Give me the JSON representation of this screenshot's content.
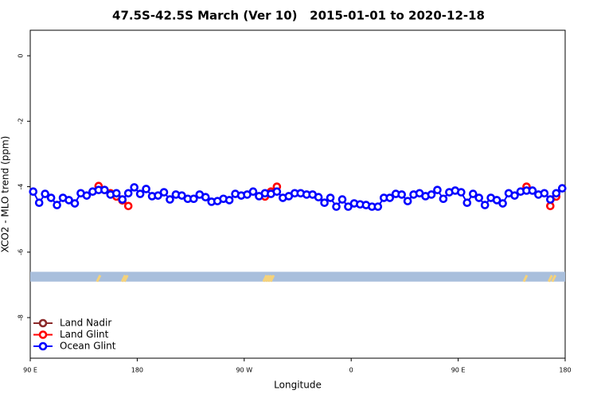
{
  "chart_data": {
    "type": "line",
    "title": "47.5S-42.5S March (Ver 10)   2015-01-01 to 2020-12-18",
    "x_label": "Longitude",
    "y_label": "XCO2 - MLO trend (ppm)",
    "xlim": [
      90,
      540
    ],
    "ylim": [
      -9.24,
      0.78
    ],
    "xticks": [
      {
        "value": 90,
        "label": "90 E"
      },
      180,
      {
        "value": 270,
        "label": "90 W"
      },
      {
        "value": 360,
        "label": "0"
      },
      {
        "value": 450,
        "label": "90 E"
      },
      {
        "value": 540,
        "label": "180"
      }
    ],
    "yticks": [
      0,
      -2,
      -4,
      -6,
      -8
    ],
    "legend": "bottom-left",
    "band": {
      "ylim": [
        -6.9,
        -6.6
      ],
      "color": "#a9bfdc",
      "mark_color": "#f5d27a",
      "mark_x": [
        147.5,
        168.5,
        170.5,
        287.5,
        289.5,
        291.5,
        293.5,
        506.5,
        527.5,
        530.5
      ]
    },
    "series": [
      {
        "name": "Land Nadir",
        "color": "#8b2a2a",
        "x": [],
        "values": []
      },
      {
        "name": "Land Glint",
        "color": "#ff0000",
        "x": [
          147.5,
          152.5,
          157.5,
          162.5,
          167.5,
          172.5,
          null,
          287.5,
          292.5,
          297.5,
          null,
          507.5,
          null,
          527.5,
          532.5
        ],
        "values": [
          -3.98,
          -4.1,
          -4.2,
          -4.3,
          -4.42,
          -4.59,
          null,
          -4.3,
          -4.15,
          -4.0,
          null,
          -4.0,
          null,
          -4.59,
          -4.3
        ]
      },
      {
        "name": "Ocean Glint",
        "color": "#0000ff",
        "x": [
          92.5,
          97.5,
          102.5,
          107.5,
          112.5,
          117.5,
          122.5,
          127.5,
          132.5,
          137.5,
          142.5,
          147.5,
          152.5,
          157.5,
          162.5,
          167.5,
          172.5,
          177.5,
          182.5,
          187.5,
          192.5,
          197.5,
          202.5,
          207.5,
          212.5,
          217.5,
          222.5,
          227.5,
          232.5,
          237.5,
          242.5,
          247.5,
          252.5,
          257.5,
          262.5,
          267.5,
          272.5,
          277.5,
          282.5,
          287.5,
          292.5,
          297.5,
          302.5,
          307.5,
          312.5,
          317.5,
          322.5,
          327.5,
          332.5,
          337.5,
          342.5,
          347.5,
          352.5,
          357.5,
          362.5,
          367.5,
          372.5,
          377.5,
          382.5,
          387.5,
          392.5,
          397.5,
          402.5,
          407.5,
          412.5,
          417.5,
          422.5,
          427.5,
          432.5,
          437.5,
          442.5,
          447.5,
          452.5,
          457.5,
          462.5,
          467.5,
          472.5,
          477.5,
          482.5,
          487.5,
          492.5,
          497.5,
          502.5,
          507.5,
          512.5,
          517.5,
          522.5,
          527.5,
          532.5,
          537.5
        ],
        "values": [
          -4.15,
          -4.49,
          -4.22,
          -4.34,
          -4.56,
          -4.34,
          -4.41,
          -4.51,
          -4.2,
          -4.27,
          -4.15,
          -4.1,
          -4.1,
          -4.24,
          -4.2,
          -4.39,
          -4.2,
          -4.02,
          -4.22,
          -4.07,
          -4.29,
          -4.27,
          -4.17,
          -4.39,
          -4.24,
          -4.27,
          -4.37,
          -4.37,
          -4.24,
          -4.32,
          -4.46,
          -4.44,
          -4.37,
          -4.41,
          -4.22,
          -4.27,
          -4.24,
          -4.15,
          -4.29,
          -4.2,
          -4.22,
          -4.15,
          -4.34,
          -4.29,
          -4.2,
          -4.2,
          -4.24,
          -4.24,
          -4.32,
          -4.49,
          -4.34,
          -4.61,
          -4.39,
          -4.61,
          -4.51,
          -4.54,
          -4.56,
          -4.61,
          -4.61,
          -4.34,
          -4.34,
          -4.22,
          -4.24,
          -4.44,
          -4.24,
          -4.2,
          -4.29,
          -4.24,
          -4.1,
          -4.37,
          -4.17,
          -4.12,
          -4.17,
          -4.49,
          -4.22,
          -4.34,
          -4.56,
          -4.34,
          -4.41,
          -4.51,
          -4.2,
          -4.27,
          -4.15,
          -4.12,
          -4.12,
          -4.24,
          -4.2,
          -4.39,
          -4.2,
          -4.05
        ]
      }
    ]
  }
}
